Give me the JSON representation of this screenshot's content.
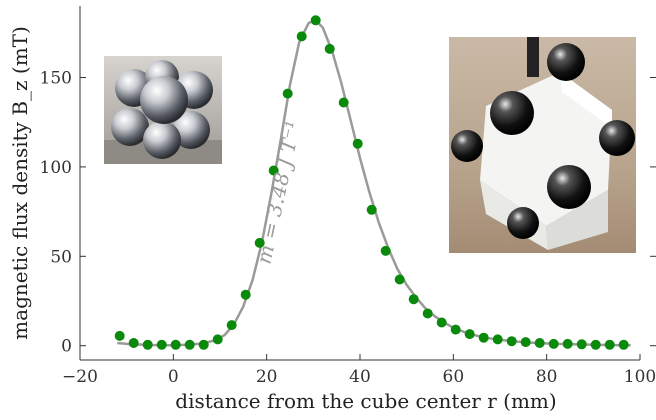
{
  "chart_data": {
    "type": "scatter",
    "title": "",
    "xlabel": "distance from the cube center r (mm)",
    "ylabel": "magnetic flux density B_z (mT)",
    "xlim": [
      -20,
      100
    ],
    "ylim": [
      -8,
      190
    ],
    "xticks": [
      -20,
      0,
      20,
      40,
      60,
      80,
      100
    ],
    "yticks": [
      0,
      50,
      100,
      150
    ],
    "grid": false,
    "annotation": "m = 3.48 J T⁻¹",
    "series": [
      {
        "type": "scatter",
        "color": "#0a8a0a",
        "x": [
          -11.5,
          -8.5,
          -5.5,
          -2.5,
          0.5,
          3.5,
          6.5,
          9.5,
          12.5,
          15.5,
          18.5,
          21.5,
          24.5,
          27.5,
          30.5,
          33.5,
          36.5,
          39.5,
          42.5,
          45.5,
          48.5,
          51.5,
          54.5,
          57.5,
          60.5,
          63.5,
          66.5,
          69.5,
          72.5,
          75.5,
          78.5,
          81.5,
          84.5,
          87.5,
          90.5,
          93.5,
          96.5
        ],
        "y": [
          5.5,
          1.5,
          0.5,
          0.5,
          0.5,
          0.5,
          0.5,
          3.5,
          11.5,
          28.5,
          57.5,
          98,
          141,
          173,
          182,
          166,
          136,
          113,
          76,
          53,
          37,
          26,
          18,
          13,
          9,
          6.5,
          4.5,
          3.5,
          2.5,
          2,
          1.5,
          1,
          1,
          0.8,
          0.5,
          0.5,
          0.5
        ]
      },
      {
        "type": "line",
        "color": "#9a9a9a",
        "x": [
          -12,
          -9,
          -6,
          -3,
          0,
          3,
          6,
          9,
          11,
          13,
          15,
          17,
          19,
          21,
          23,
          25,
          27,
          29,
          30.5,
          32,
          34,
          36,
          38,
          40,
          42,
          44,
          46,
          48,
          50,
          52,
          54,
          56,
          58,
          60,
          63,
          66,
          69,
          72,
          75,
          78,
          81,
          84,
          87,
          90,
          93,
          96,
          98
        ],
        "y": [
          1.5,
          0.8,
          0.5,
          0.3,
          0.3,
          0.5,
          1.2,
          3,
          6,
          12,
          22,
          37,
          58,
          85,
          115,
          146,
          170,
          180.5,
          182,
          178,
          165,
          147,
          126,
          105,
          86,
          69,
          55,
          43,
          34,
          27,
          21,
          16.5,
          13,
          10,
          7,
          5,
          3.6,
          2.7,
          2,
          1.5,
          1.2,
          0.9,
          0.7,
          0.5,
          0.4,
          0.3,
          0.3
        ]
      }
    ],
    "insets": [
      {
        "name": "magnetic-spheres-photo",
        "position": "top-left"
      },
      {
        "name": "cube-with-spheres-photo",
        "position": "top-right"
      }
    ]
  }
}
